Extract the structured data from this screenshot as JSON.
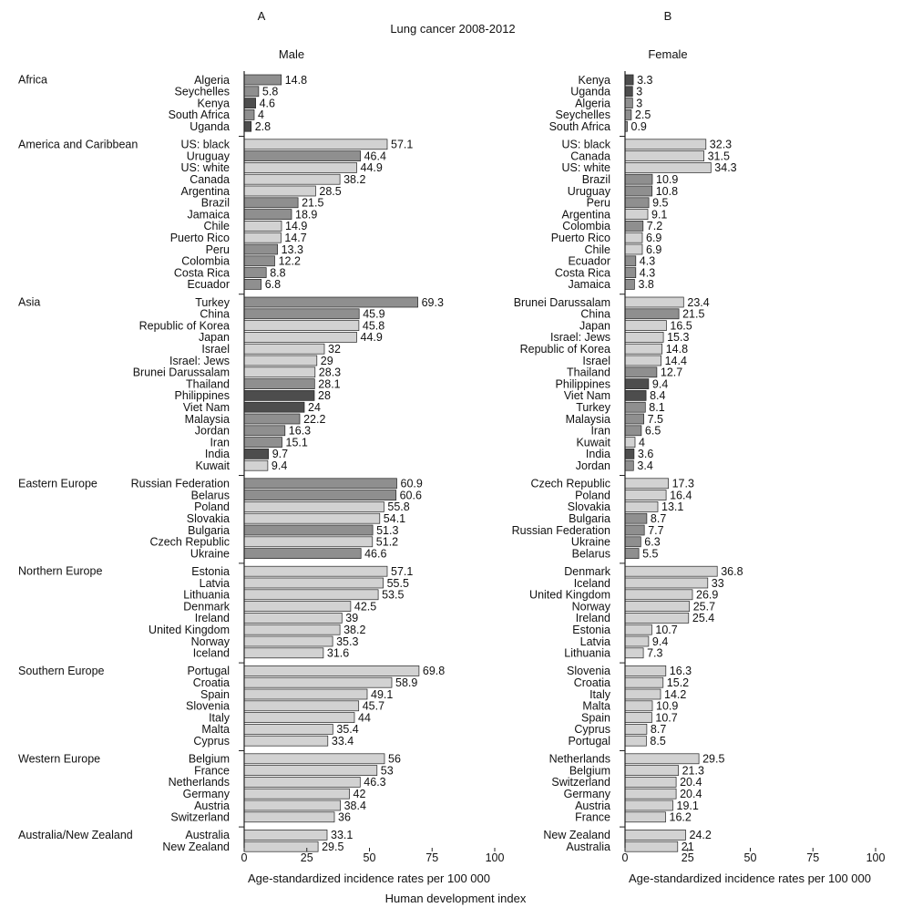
{
  "figure": {
    "title": "Lung cancer 2008-2012",
    "bottom_caption": "Human development index"
  },
  "colors": {
    "light": "#d2d2d2",
    "medium": "#8f8f8f",
    "dark": "#4d4d4d",
    "stroke": "#222222"
  },
  "chart_data": [
    {
      "type": "bar",
      "orientation": "horizontal",
      "panel_label": "A",
      "subtitle": "Male",
      "xlabel": "Age-standardized incidence rates per 100 000",
      "xlim": [
        0,
        100
      ],
      "xticks": [
        0,
        25,
        50,
        75,
        100
      ],
      "groups": [
        {
          "name": "Africa",
          "items": [
            {
              "label": "Algeria",
              "value": 14.8,
              "shade": "medium"
            },
            {
              "label": "Seychelles",
              "value": 5.8,
              "shade": "medium"
            },
            {
              "label": "Kenya",
              "value": 4.6,
              "shade": "dark"
            },
            {
              "label": "South Africa",
              "value": 4,
              "shade": "medium"
            },
            {
              "label": "Uganda",
              "value": 2.8,
              "shade": "dark"
            }
          ]
        },
        {
          "name": "America and Caribbean",
          "items": [
            {
              "label": "US: black",
              "value": 57.1,
              "shade": "light"
            },
            {
              "label": "Uruguay",
              "value": 46.4,
              "shade": "medium"
            },
            {
              "label": "US: white",
              "value": 44.9,
              "shade": "light"
            },
            {
              "label": "Canada",
              "value": 38.2,
              "shade": "light"
            },
            {
              "label": "Argentina",
              "value": 28.5,
              "shade": "light"
            },
            {
              "label": "Brazil",
              "value": 21.5,
              "shade": "medium"
            },
            {
              "label": "Jamaica",
              "value": 18.9,
              "shade": "medium"
            },
            {
              "label": "Chile",
              "value": 14.9,
              "shade": "light"
            },
            {
              "label": "Puerto Rico",
              "value": 14.7,
              "shade": "light"
            },
            {
              "label": "Peru",
              "value": 13.3,
              "shade": "medium"
            },
            {
              "label": "Colombia",
              "value": 12.2,
              "shade": "medium"
            },
            {
              "label": "Costa Rica",
              "value": 8.8,
              "shade": "medium"
            },
            {
              "label": "Ecuador",
              "value": 6.8,
              "shade": "medium"
            }
          ]
        },
        {
          "name": "Asia",
          "items": [
            {
              "label": "Turkey",
              "value": 69.3,
              "shade": "medium"
            },
            {
              "label": "China",
              "value": 45.9,
              "shade": "medium"
            },
            {
              "label": "Republic of Korea",
              "value": 45.8,
              "shade": "light"
            },
            {
              "label": "Japan",
              "value": 44.9,
              "shade": "light"
            },
            {
              "label": "Israel",
              "value": 32,
              "shade": "light"
            },
            {
              "label": "Israel: Jews",
              "value": 29,
              "shade": "light"
            },
            {
              "label": "Brunei Darussalam",
              "value": 28.3,
              "shade": "light"
            },
            {
              "label": "Thailand",
              "value": 28.1,
              "shade": "medium"
            },
            {
              "label": "Philippines",
              "value": 28,
              "shade": "dark"
            },
            {
              "label": "Viet Nam",
              "value": 24,
              "shade": "dark"
            },
            {
              "label": "Malaysia",
              "value": 22.2,
              "shade": "medium"
            },
            {
              "label": "Jordan",
              "value": 16.3,
              "shade": "medium"
            },
            {
              "label": "Iran",
              "value": 15.1,
              "shade": "medium"
            },
            {
              "label": "India",
              "value": 9.7,
              "shade": "dark"
            },
            {
              "label": "Kuwait",
              "value": 9.4,
              "shade": "light"
            }
          ]
        },
        {
          "name": "Eastern Europe",
          "items": [
            {
              "label": "Russian Federation",
              "value": 60.9,
              "shade": "medium"
            },
            {
              "label": "Belarus",
              "value": 60.6,
              "shade": "medium"
            },
            {
              "label": "Poland",
              "value": 55.8,
              "shade": "light"
            },
            {
              "label": "Slovakia",
              "value": 54.1,
              "shade": "light"
            },
            {
              "label": "Bulgaria",
              "value": 51.3,
              "shade": "medium"
            },
            {
              "label": "Czech Republic",
              "value": 51.2,
              "shade": "light"
            },
            {
              "label": "Ukraine",
              "value": 46.6,
              "shade": "medium"
            }
          ]
        },
        {
          "name": "Northern Europe",
          "items": [
            {
              "label": "Estonia",
              "value": 57.1,
              "shade": "light"
            },
            {
              "label": "Latvia",
              "value": 55.5,
              "shade": "light"
            },
            {
              "label": "Lithuania",
              "value": 53.5,
              "shade": "light"
            },
            {
              "label": "Denmark",
              "value": 42.5,
              "shade": "light"
            },
            {
              "label": "Ireland",
              "value": 39,
              "shade": "light"
            },
            {
              "label": "United Kingdom",
              "value": 38.2,
              "shade": "light"
            },
            {
              "label": "Norway",
              "value": 35.3,
              "shade": "light"
            },
            {
              "label": "Iceland",
              "value": 31.6,
              "shade": "light"
            }
          ]
        },
        {
          "name": "Southern Europe",
          "items": [
            {
              "label": "Portugal",
              "value": 69.8,
              "shade": "light"
            },
            {
              "label": "Croatia",
              "value": 58.9,
              "shade": "light"
            },
            {
              "label": "Spain",
              "value": 49.1,
              "shade": "light"
            },
            {
              "label": "Slovenia",
              "value": 45.7,
              "shade": "light"
            },
            {
              "label": "Italy",
              "value": 44,
              "shade": "light"
            },
            {
              "label": "Malta",
              "value": 35.4,
              "shade": "light"
            },
            {
              "label": "Cyprus",
              "value": 33.4,
              "shade": "light"
            }
          ]
        },
        {
          "name": "Western Europe",
          "items": [
            {
              "label": "Belgium",
              "value": 56,
              "shade": "light"
            },
            {
              "label": "France",
              "value": 53,
              "shade": "light"
            },
            {
              "label": "Netherlands",
              "value": 46.3,
              "shade": "light"
            },
            {
              "label": "Germany",
              "value": 42,
              "shade": "light"
            },
            {
              "label": "Austria",
              "value": 38.4,
              "shade": "light"
            },
            {
              "label": "Switzerland",
              "value": 36,
              "shade": "light"
            }
          ]
        },
        {
          "name": "Australia/New Zealand",
          "items": [
            {
              "label": "Australia",
              "value": 33.1,
              "shade": "light"
            },
            {
              "label": "New Zealand",
              "value": 29.5,
              "shade": "light"
            }
          ]
        }
      ]
    },
    {
      "type": "bar",
      "orientation": "horizontal",
      "panel_label": "B",
      "subtitle": "Female",
      "xlabel": "Age-standardized incidence rates per 100 000",
      "xlim": [
        0,
        100
      ],
      "xticks": [
        0,
        25,
        50,
        75,
        100
      ],
      "groups": [
        {
          "name": "Africa",
          "items": [
            {
              "label": "Kenya",
              "value": 3.3,
              "shade": "dark"
            },
            {
              "label": "Uganda",
              "value": 3,
              "shade": "dark"
            },
            {
              "label": "Algeria",
              "value": 3,
              "shade": "medium"
            },
            {
              "label": "Seychelles",
              "value": 2.5,
              "shade": "medium"
            },
            {
              "label": "South Africa",
              "value": 0.9,
              "shade": "medium"
            }
          ]
        },
        {
          "name": "America and Caribbean",
          "items": [
            {
              "label": "US: black",
              "value": 32.3,
              "shade": "light"
            },
            {
              "label": "Canada",
              "value": 31.5,
              "shade": "light"
            },
            {
              "label": "US: white",
              "value": 34.3,
              "shade": "light"
            },
            {
              "label": "Brazil",
              "value": 10.9,
              "shade": "medium"
            },
            {
              "label": "Uruguay",
              "value": 10.8,
              "shade": "medium"
            },
            {
              "label": "Peru",
              "value": 9.5,
              "shade": "medium"
            },
            {
              "label": "Argentina",
              "value": 9.1,
              "shade": "light"
            },
            {
              "label": "Colombia",
              "value": 7.2,
              "shade": "medium"
            },
            {
              "label": "Puerto Rico",
              "value": 6.9,
              "shade": "light"
            },
            {
              "label": "Chile",
              "value": 6.9,
              "shade": "light"
            },
            {
              "label": "Ecuador",
              "value": 4.3,
              "shade": "medium"
            },
            {
              "label": "Costa Rica",
              "value": 4.3,
              "shade": "medium"
            },
            {
              "label": "Jamaica",
              "value": 3.8,
              "shade": "medium"
            }
          ]
        },
        {
          "name": "Asia",
          "items": [
            {
              "label": "Brunei Darussalam",
              "value": 23.4,
              "shade": "light"
            },
            {
              "label": "China",
              "value": 21.5,
              "shade": "medium"
            },
            {
              "label": "Japan",
              "value": 16.5,
              "shade": "light"
            },
            {
              "label": "Israel: Jews",
              "value": 15.3,
              "shade": "light"
            },
            {
              "label": "Republic of Korea",
              "value": 14.8,
              "shade": "light"
            },
            {
              "label": "Israel",
              "value": 14.4,
              "shade": "light"
            },
            {
              "label": "Thailand",
              "value": 12.7,
              "shade": "medium"
            },
            {
              "label": "Philippines",
              "value": 9.4,
              "shade": "dark"
            },
            {
              "label": "Viet Nam",
              "value": 8.4,
              "shade": "dark"
            },
            {
              "label": "Turkey",
              "value": 8.1,
              "shade": "medium"
            },
            {
              "label": "Malaysia",
              "value": 7.5,
              "shade": "medium"
            },
            {
              "label": "Iran",
              "value": 6.5,
              "shade": "medium"
            },
            {
              "label": "Kuwait",
              "value": 4,
              "shade": "light"
            },
            {
              "label": "India",
              "value": 3.6,
              "shade": "dark"
            },
            {
              "label": "Jordan",
              "value": 3.4,
              "shade": "medium"
            }
          ]
        },
        {
          "name": "Eastern Europe",
          "items": [
            {
              "label": "Czech Republic",
              "value": 17.3,
              "shade": "light"
            },
            {
              "label": "Poland",
              "value": 16.4,
              "shade": "light"
            },
            {
              "label": "Slovakia",
              "value": 13.1,
              "shade": "light"
            },
            {
              "label": "Bulgaria",
              "value": 8.7,
              "shade": "medium"
            },
            {
              "label": "Russian Federation",
              "value": 7.7,
              "shade": "medium"
            },
            {
              "label": "Ukraine",
              "value": 6.3,
              "shade": "medium"
            },
            {
              "label": "Belarus",
              "value": 5.5,
              "shade": "medium"
            }
          ]
        },
        {
          "name": "Northern Europe",
          "items": [
            {
              "label": "Denmark",
              "value": 36.8,
              "shade": "light"
            },
            {
              "label": "Iceland",
              "value": 33,
              "shade": "light"
            },
            {
              "label": "United Kingdom",
              "value": 26.9,
              "shade": "light"
            },
            {
              "label": "Norway",
              "value": 25.7,
              "shade": "light"
            },
            {
              "label": "Ireland",
              "value": 25.4,
              "shade": "light"
            },
            {
              "label": "Estonia",
              "value": 10.7,
              "shade": "light"
            },
            {
              "label": "Latvia",
              "value": 9.4,
              "shade": "light"
            },
            {
              "label": "Lithuania",
              "value": 7.3,
              "shade": "light"
            }
          ]
        },
        {
          "name": "Southern Europe",
          "items": [
            {
              "label": "Slovenia",
              "value": 16.3,
              "shade": "light"
            },
            {
              "label": "Croatia",
              "value": 15.2,
              "shade": "light"
            },
            {
              "label": "Italy",
              "value": 14.2,
              "shade": "light"
            },
            {
              "label": "Malta",
              "value": 10.9,
              "shade": "light"
            },
            {
              "label": "Spain",
              "value": 10.7,
              "shade": "light"
            },
            {
              "label": "Cyprus",
              "value": 8.7,
              "shade": "light"
            },
            {
              "label": "Portugal",
              "value": 8.5,
              "shade": "light"
            }
          ]
        },
        {
          "name": "Western Europe",
          "items": [
            {
              "label": "Netherlands",
              "value": 29.5,
              "shade": "light"
            },
            {
              "label": "Belgium",
              "value": 21.3,
              "shade": "light"
            },
            {
              "label": "Switzerland",
              "value": 20.4,
              "shade": "light"
            },
            {
              "label": "Germany",
              "value": 20.4,
              "shade": "light"
            },
            {
              "label": "Austria",
              "value": 19.1,
              "shade": "light"
            },
            {
              "label": "France",
              "value": 16.2,
              "shade": "light"
            }
          ]
        },
        {
          "name": "Australia/New Zealand",
          "items": [
            {
              "label": "New Zealand",
              "value": 24.2,
              "shade": "light"
            },
            {
              "label": "Australia",
              "value": 21,
              "shade": "light"
            }
          ]
        }
      ]
    }
  ]
}
